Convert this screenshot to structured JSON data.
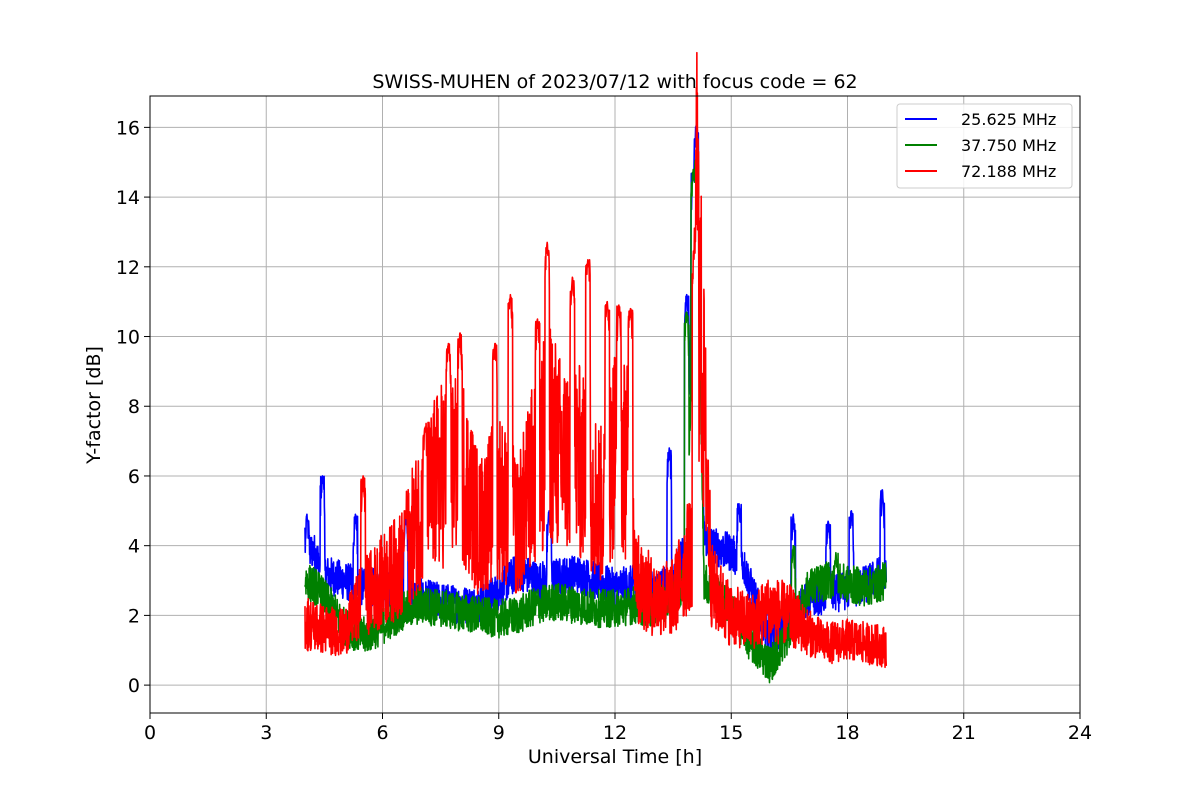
{
  "chart_data": {
    "type": "line",
    "title": "SWISS-MUHEN of 2023/07/12 with focus code = 62",
    "xlabel": "Universal Time [h]",
    "ylabel": "Y-factor [dB]",
    "xlim": [
      0,
      24
    ],
    "ylim": [
      -0.8,
      16.9
    ],
    "xticks": [
      0,
      3,
      6,
      9,
      12,
      15,
      18,
      21,
      24
    ],
    "yticks": [
      0,
      2,
      4,
      6,
      8,
      10,
      12,
      14,
      16
    ],
    "grid": true,
    "legend_position": "top-right",
    "series": [
      {
        "name": "25.625 MHz",
        "color": "#0000ff",
        "x": [
          4.0,
          4.2,
          4.5,
          5.0,
          5.5,
          6.0,
          6.5,
          7.0,
          7.5,
          8.0,
          8.5,
          9.0,
          9.5,
          10.0,
          10.5,
          11.0,
          11.5,
          12.0,
          12.5,
          13.0,
          13.5,
          13.8,
          14.0,
          14.1,
          14.3,
          14.5,
          15.0,
          15.3,
          15.6,
          16.0,
          16.5,
          17.0,
          17.5,
          18.0,
          18.5,
          19.0
        ],
        "y": [
          3.6,
          3.9,
          3.2,
          3.0,
          2.8,
          2.8,
          2.6,
          2.5,
          2.4,
          2.3,
          2.3,
          2.7,
          3.3,
          3.0,
          3.1,
          3.2,
          3.0,
          2.8,
          2.9,
          2.7,
          3.0,
          4.0,
          12.0,
          16.0,
          4.3,
          4.0,
          3.8,
          3.5,
          2.5,
          1.3,
          1.8,
          2.5,
          2.6,
          2.7,
          2.9,
          3.3
        ],
        "peaks_x": [
          4.05,
          4.45,
          5.3,
          6.6,
          10.3,
          13.4,
          13.85,
          14.02,
          14.1,
          15.2,
          16.6,
          17.5,
          18.1,
          18.9
        ],
        "peaks_y": [
          4.9,
          6.0,
          4.9,
          4.9,
          5.0,
          6.8,
          11.2,
          14.7,
          16.1,
          5.2,
          4.9,
          4.7,
          5.0,
          5.6
        ]
      },
      {
        "name": "37.750 MHz",
        "color": "#008000",
        "x": [
          4.0,
          4.3,
          4.7,
          5.0,
          5.5,
          6.0,
          6.5,
          7.0,
          7.5,
          8.0,
          8.5,
          9.0,
          9.5,
          10.0,
          10.5,
          11.0,
          11.5,
          12.0,
          12.5,
          13.0,
          13.5,
          13.8,
          14.0,
          14.1,
          14.3,
          14.5,
          15.0,
          15.5,
          16.0,
          16.5,
          17.0,
          17.5,
          18.0,
          18.5,
          19.0
        ],
        "y": [
          3.0,
          2.8,
          2.2,
          1.7,
          1.4,
          1.7,
          2.1,
          2.3,
          2.2,
          2.1,
          2.0,
          1.9,
          2.0,
          2.3,
          2.4,
          2.3,
          2.2,
          2.2,
          2.3,
          2.2,
          2.5,
          3.0,
          10.0,
          14.8,
          3.0,
          2.7,
          2.2,
          1.2,
          0.6,
          1.5,
          2.8,
          3.0,
          2.9,
          2.8,
          3.0
        ],
        "peaks_x": [
          13.85,
          14.02,
          14.1,
          16.6,
          17.7
        ],
        "peaks_y": [
          10.7,
          14.8,
          15.1,
          4.0,
          3.8
        ]
      },
      {
        "name": "72.188 MHz",
        "color": "#ff0000",
        "x": [
          4.0,
          4.5,
          5.0,
          5.5,
          6.0,
          6.5,
          7.0,
          7.5,
          8.0,
          8.5,
          9.0,
          9.5,
          10.0,
          10.3,
          10.6,
          11.0,
          11.3,
          11.7,
          12.0,
          12.3,
          12.6,
          13.0,
          13.5,
          14.0,
          14.1,
          14.5,
          15.0,
          15.5,
          16.0,
          16.5,
          17.0,
          17.5,
          18.0,
          18.5,
          19.0
        ],
        "y": [
          1.8,
          1.6,
          1.5,
          2.5,
          3.0,
          3.5,
          5.0,
          6.0,
          6.5,
          4.5,
          5.5,
          4.5,
          6.5,
          7.5,
          6.5,
          6.5,
          6.0,
          5.0,
          7.0,
          6.5,
          3.0,
          2.5,
          2.5,
          4.0,
          13.0,
          2.8,
          2.0,
          1.8,
          2.2,
          2.0,
          1.5,
          1.2,
          1.3,
          1.2,
          1.1
        ],
        "peaks_x": [
          5.5,
          6.6,
          7.1,
          7.7,
          8.0,
          8.9,
          9.3,
          10.0,
          10.25,
          10.9,
          11.3,
          11.8,
          12.1,
          12.4,
          14.05,
          14.1
        ],
        "peaks_y": [
          6.0,
          5.0,
          7.4,
          9.8,
          10.1,
          9.8,
          11.2,
          10.5,
          12.7,
          11.7,
          12.2,
          11.0,
          10.9,
          10.8,
          12.5,
          13.3
        ]
      }
    ]
  }
}
